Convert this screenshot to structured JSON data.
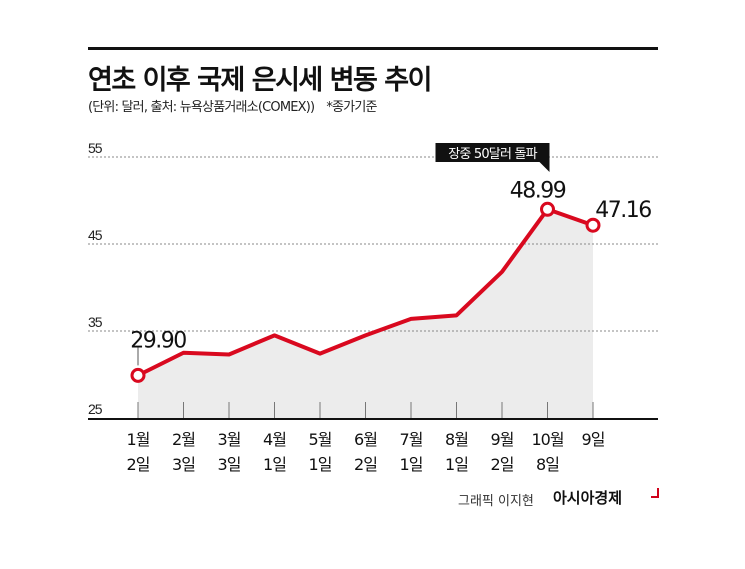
{
  "header": {
    "title": "연초 이후 국제 은시세 변동 추이",
    "subtitle": "(단위: 달러, 출처: 뉴욕상품거래소(COMEX))",
    "note": "*종가기준"
  },
  "footer": {
    "credit": "그래픽 이지현",
    "brand": "아시아경제"
  },
  "colors": {
    "line": "#d9091f",
    "fill": "#ececec",
    "grid": "#888888",
    "callout_bg": "#111111"
  },
  "chart_data": {
    "type": "area",
    "title": "연초 이후 국제 은시세 변동 추이",
    "categories": [
      [
        "1월",
        "2일"
      ],
      [
        "2월",
        "3일"
      ],
      [
        "3월",
        "3일"
      ],
      [
        "4월",
        "1일"
      ],
      [
        "5월",
        "1일"
      ],
      [
        "6월",
        "2일"
      ],
      [
        "7월",
        "1일"
      ],
      [
        "8월",
        "1일"
      ],
      [
        "9월",
        "2일"
      ],
      [
        "10월",
        "8일"
      ],
      [
        "9일",
        ""
      ]
    ],
    "values": [
      29.9,
      32.5,
      32.3,
      34.5,
      32.4,
      34.5,
      36.4,
      36.8,
      41.8,
      48.99,
      47.16
    ],
    "ylim": [
      25,
      55
    ],
    "yticks": [
      "25",
      "35",
      "45",
      "55"
    ],
    "grid": true,
    "data_labels": [
      {
        "index": 0,
        "text": "29.90"
      },
      {
        "index": 9,
        "text": "48.99"
      },
      {
        "index": 10,
        "text": "47.16"
      }
    ],
    "annotation": {
      "index": 9,
      "text": "장중 50달러 돌파"
    }
  }
}
